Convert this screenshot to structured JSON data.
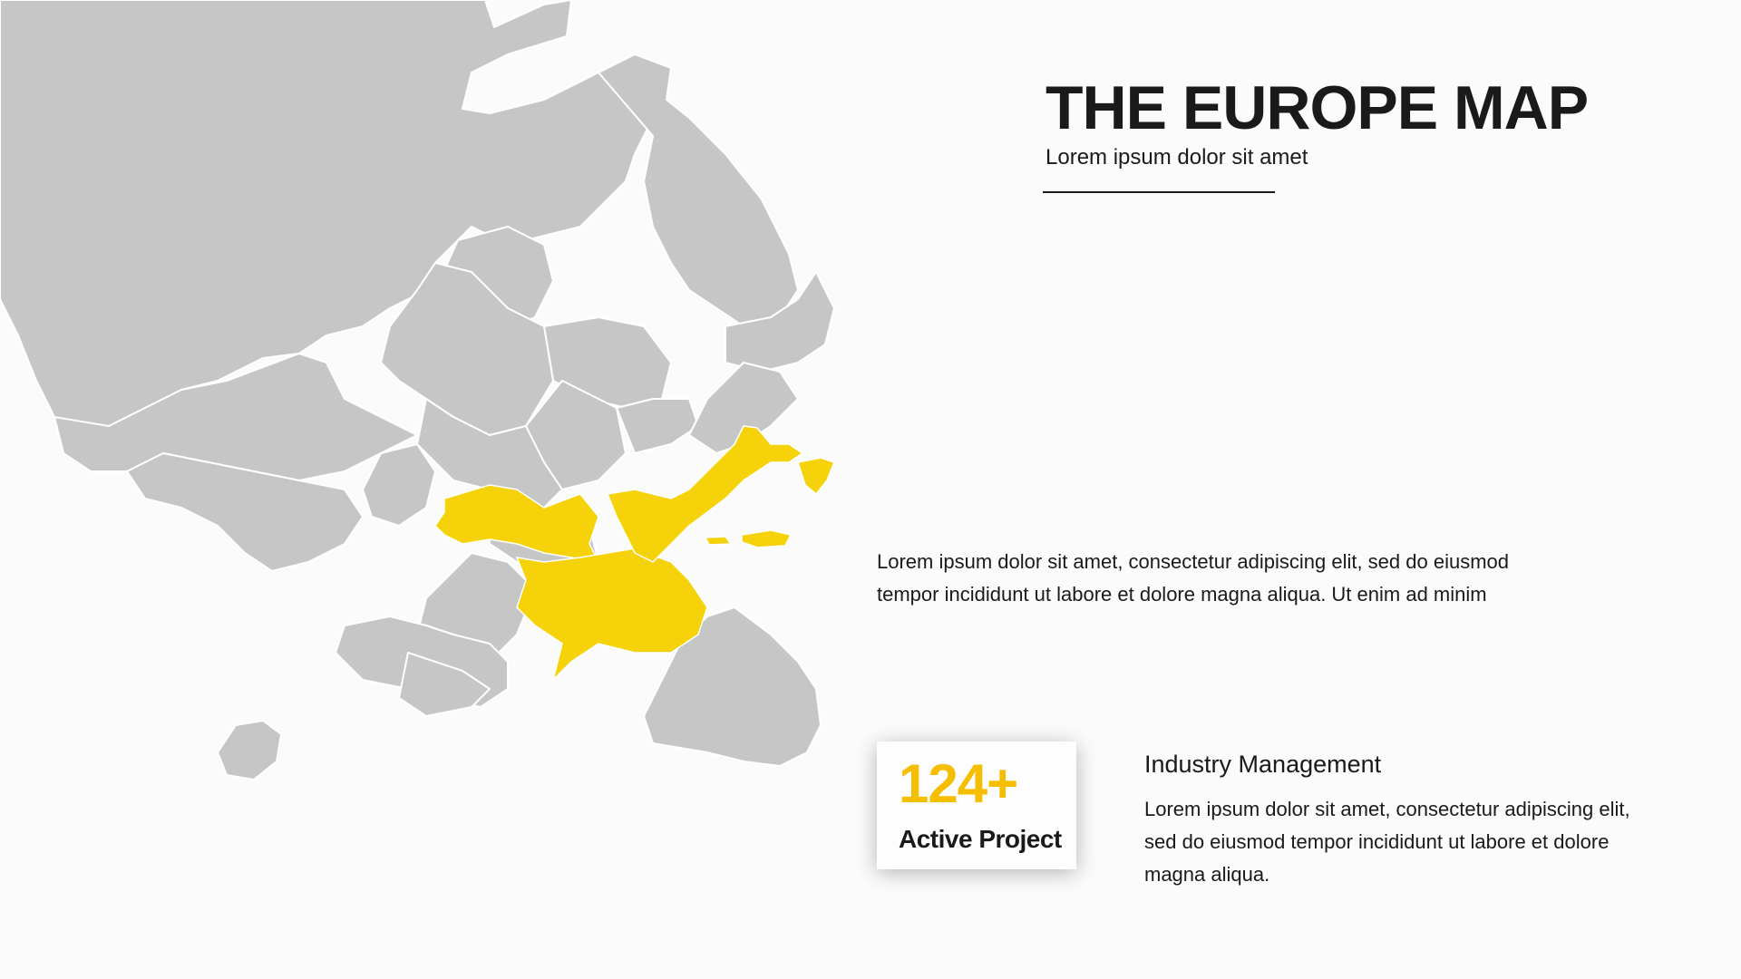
{
  "header": {
    "title": "THE EUROPE MAP",
    "subtitle": "Lorem ipsum dolor sit amet"
  },
  "description": "Lorem ipsum dolor sit amet, consectetur adipiscing elit, sed do eiusmod tempor incididunt ut labore et dolore magna aliqua. Ut enim ad minim",
  "stat_card": {
    "value": "124+",
    "label": "Active Project"
  },
  "industry": {
    "title": "Industry Management",
    "text": "Lorem ipsum dolor sit amet, consectetur adipiscing elit, sed do eiusmod tempor incididunt ut labore et dolore magna aliqua."
  },
  "colors": {
    "map_base": "#c6c6c6",
    "map_highlight": "#f5d20a",
    "accent_number": "#f5be00",
    "background": "#fbfbfb"
  }
}
